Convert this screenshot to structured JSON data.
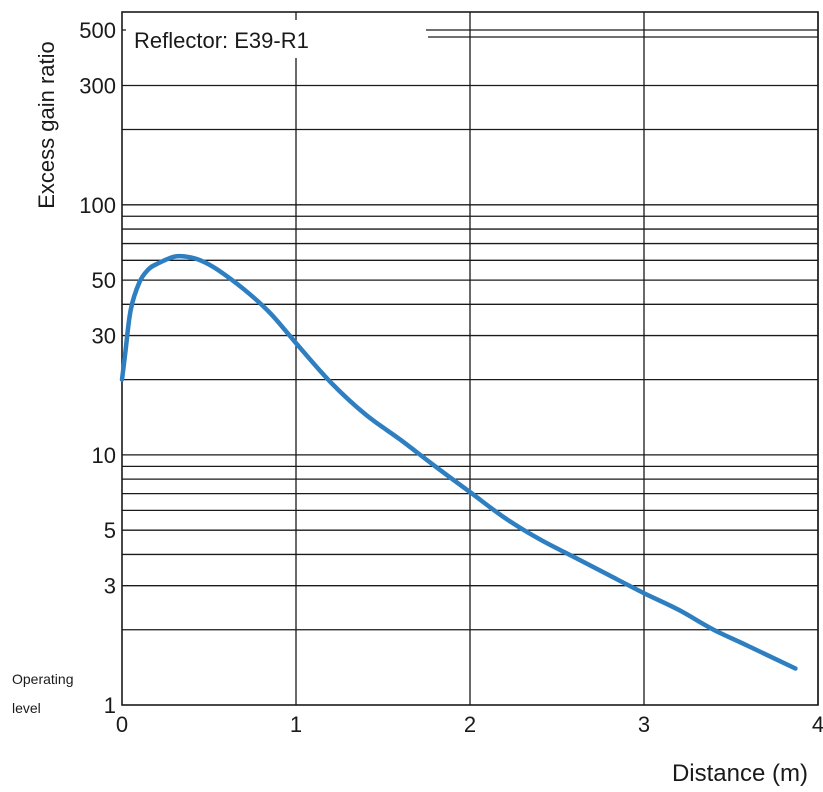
{
  "chart_data": {
    "type": "line",
    "title": "",
    "xlabel": "Distance (m)",
    "ylabel": "Excess gain ratio",
    "y_scale": "log",
    "xlim": [
      0,
      4
    ],
    "ylim": [
      1,
      500
    ],
    "grid": true,
    "x_ticks": [
      0,
      1,
      2,
      3,
      4
    ],
    "y_ticks": [
      1,
      3,
      5,
      10,
      30,
      50,
      100,
      300,
      500
    ],
    "y_operating_label": [
      "Operating",
      "level"
    ],
    "annotation": "Reflector: E39-R1",
    "line_color": "#2e7fc1",
    "series": [
      {
        "x": [
          0.0,
          0.02,
          0.05,
          0.1,
          0.15,
          0.2,
          0.3,
          0.37,
          0.45,
          0.55,
          0.7,
          0.85,
          1.0,
          1.2,
          1.4,
          1.6,
          1.8,
          2.0,
          2.2,
          2.4,
          2.6,
          2.8,
          3.0,
          3.2,
          3.4,
          3.6,
          3.87
        ],
        "y": [
          20,
          26,
          38,
          49,
          55,
          58,
          62,
          62,
          60,
          55,
          46,
          37,
          28,
          19.5,
          14.5,
          11.5,
          9.0,
          7.1,
          5.6,
          4.6,
          3.9,
          3.3,
          2.8,
          2.4,
          2.0,
          1.72,
          1.4
        ]
      }
    ]
  }
}
